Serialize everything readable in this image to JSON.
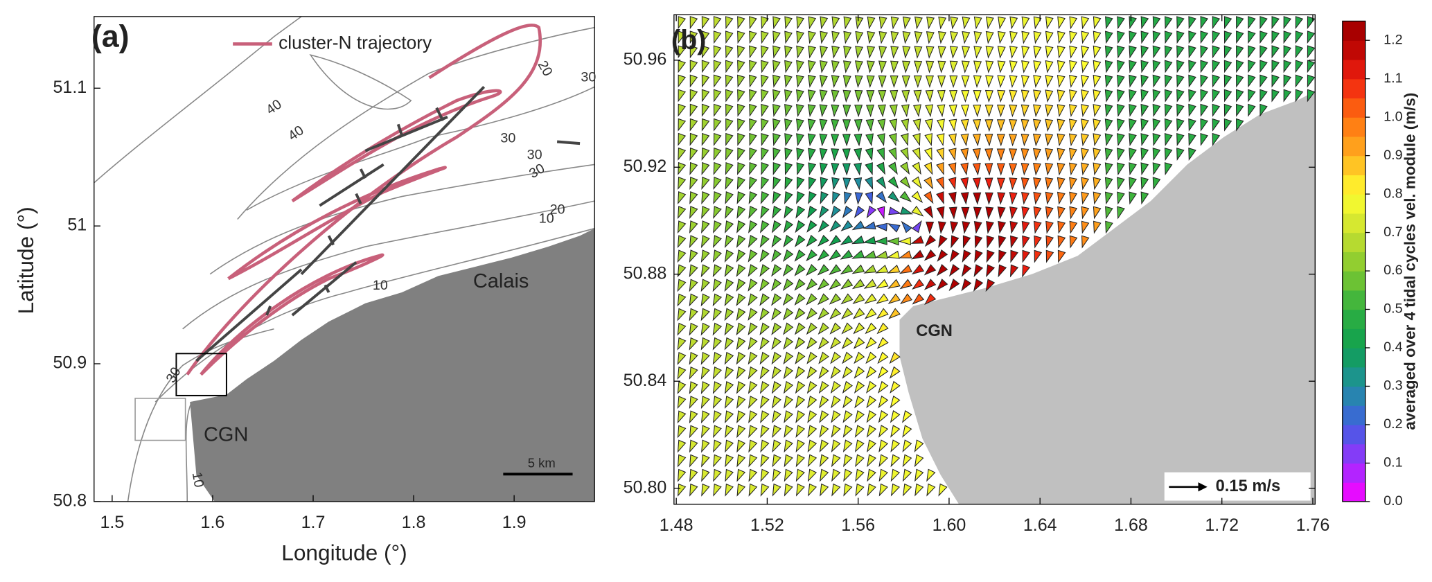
{
  "panels": [
    {
      "label": "(a)",
      "xlabel": "Longitude (°)",
      "ylabel": "Latitude (°)",
      "xlim": [
        1.482,
        1.98
      ],
      "ylim": [
        50.8,
        51.152
      ],
      "xticks": [
        1.5,
        1.6,
        1.7,
        1.8,
        1.9
      ],
      "yticks": [
        50.8,
        50.9,
        51,
        51.1
      ],
      "legend": "cluster-N trajectory",
      "places": [
        "Calais",
        "CGN"
      ],
      "contour_labels": [
        "20",
        "30",
        "40",
        "40",
        "30",
        "30",
        "30",
        "20",
        "10",
        "10",
        "30",
        "10"
      ],
      "scale_bar": "5 km"
    },
    {
      "label": "(b)",
      "xlim": [
        1.479,
        1.761
      ],
      "ylim": [
        50.794,
        50.977
      ],
      "xticks": [
        1.48,
        1.52,
        1.56,
        {
          "value": 1.6,
          "label": "1.60"
        },
        1.64,
        1.68,
        1.72,
        1.76
      ],
      "yticks": [
        {
          "value": 50.8,
          "label": "50.80"
        },
        50.84,
        50.88,
        50.92,
        50.96
      ],
      "places": [
        "CGN"
      ],
      "vector_key": "0.15 m/s"
    }
  ],
  "colorbar": {
    "label": "averaged over 4 tidal cycles vel. module (m/s)",
    "lim": [
      0,
      1.25
    ],
    "ticks": [
      {
        "value": 0,
        "label": "0.0"
      },
      0.1,
      0.2,
      0.3,
      0.4,
      0.5,
      0.6,
      0.7,
      0.8,
      0.9,
      {
        "value": 1,
        "label": "1.0"
      },
      1.1,
      1.2
    ]
  }
}
